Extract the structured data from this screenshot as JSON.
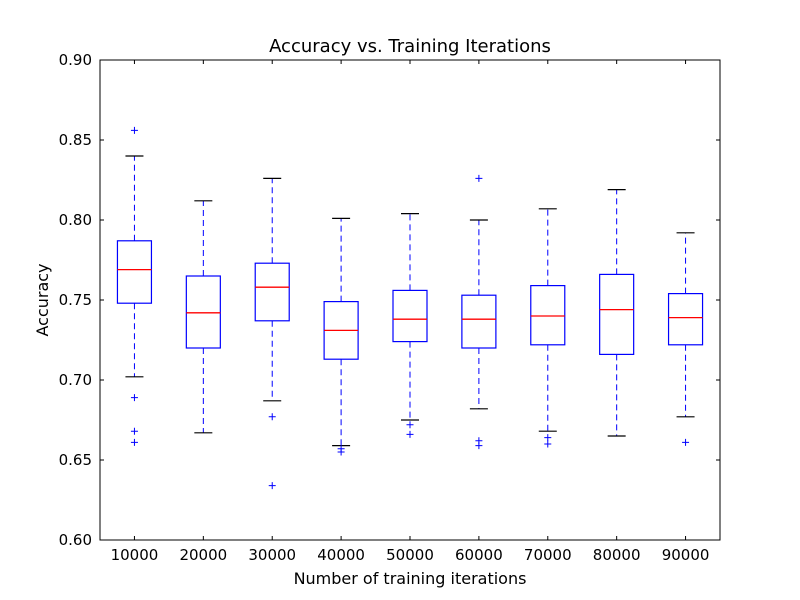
{
  "chart_data": {
    "type": "box",
    "title": "Accuracy vs. Training Iterations",
    "xlabel": "Number of training iterations",
    "ylabel": "Accuracy",
    "ylim": [
      0.6,
      0.9
    ],
    "yticks": [
      "0.60",
      "0.65",
      "0.70",
      "0.75",
      "0.80",
      "0.85",
      "0.90"
    ],
    "categories": [
      "10000",
      "20000",
      "30000",
      "40000",
      "50000",
      "60000",
      "70000",
      "80000",
      "90000"
    ],
    "boxes": [
      {
        "whisker_low": 0.702,
        "q1": 0.748,
        "median": 0.769,
        "q3": 0.787,
        "whisker_high": 0.84,
        "outliers": [
          0.856,
          0.689,
          0.668,
          0.661
        ]
      },
      {
        "whisker_low": 0.667,
        "q1": 0.72,
        "median": 0.742,
        "q3": 0.765,
        "whisker_high": 0.812,
        "outliers": []
      },
      {
        "whisker_low": 0.687,
        "q1": 0.737,
        "median": 0.758,
        "q3": 0.773,
        "whisker_high": 0.826,
        "outliers": [
          0.677,
          0.634
        ]
      },
      {
        "whisker_low": 0.659,
        "q1": 0.713,
        "median": 0.731,
        "q3": 0.749,
        "whisker_high": 0.801,
        "outliers": [
          0.657,
          0.655
        ]
      },
      {
        "whisker_low": 0.675,
        "q1": 0.724,
        "median": 0.738,
        "q3": 0.756,
        "whisker_high": 0.804,
        "outliers": [
          0.672,
          0.666
        ]
      },
      {
        "whisker_low": 0.682,
        "q1": 0.72,
        "median": 0.738,
        "q3": 0.753,
        "whisker_high": 0.8,
        "outliers": [
          0.826,
          0.662,
          0.659
        ]
      },
      {
        "whisker_low": 0.668,
        "q1": 0.722,
        "median": 0.74,
        "q3": 0.759,
        "whisker_high": 0.807,
        "outliers": [
          0.664,
          0.66
        ]
      },
      {
        "whisker_low": 0.665,
        "q1": 0.716,
        "median": 0.744,
        "q3": 0.766,
        "whisker_high": 0.819,
        "outliers": []
      },
      {
        "whisker_low": 0.677,
        "q1": 0.722,
        "median": 0.739,
        "q3": 0.754,
        "whisker_high": 0.792,
        "outliers": [
          0.661
        ]
      }
    ],
    "colors": {
      "box": "#0000ff",
      "whisker": "#0000ff",
      "cap": "#000000",
      "median": "#ff0000",
      "outlier": "#0000ff",
      "axes": "#000000"
    },
    "grid": false,
    "legend": "none"
  }
}
